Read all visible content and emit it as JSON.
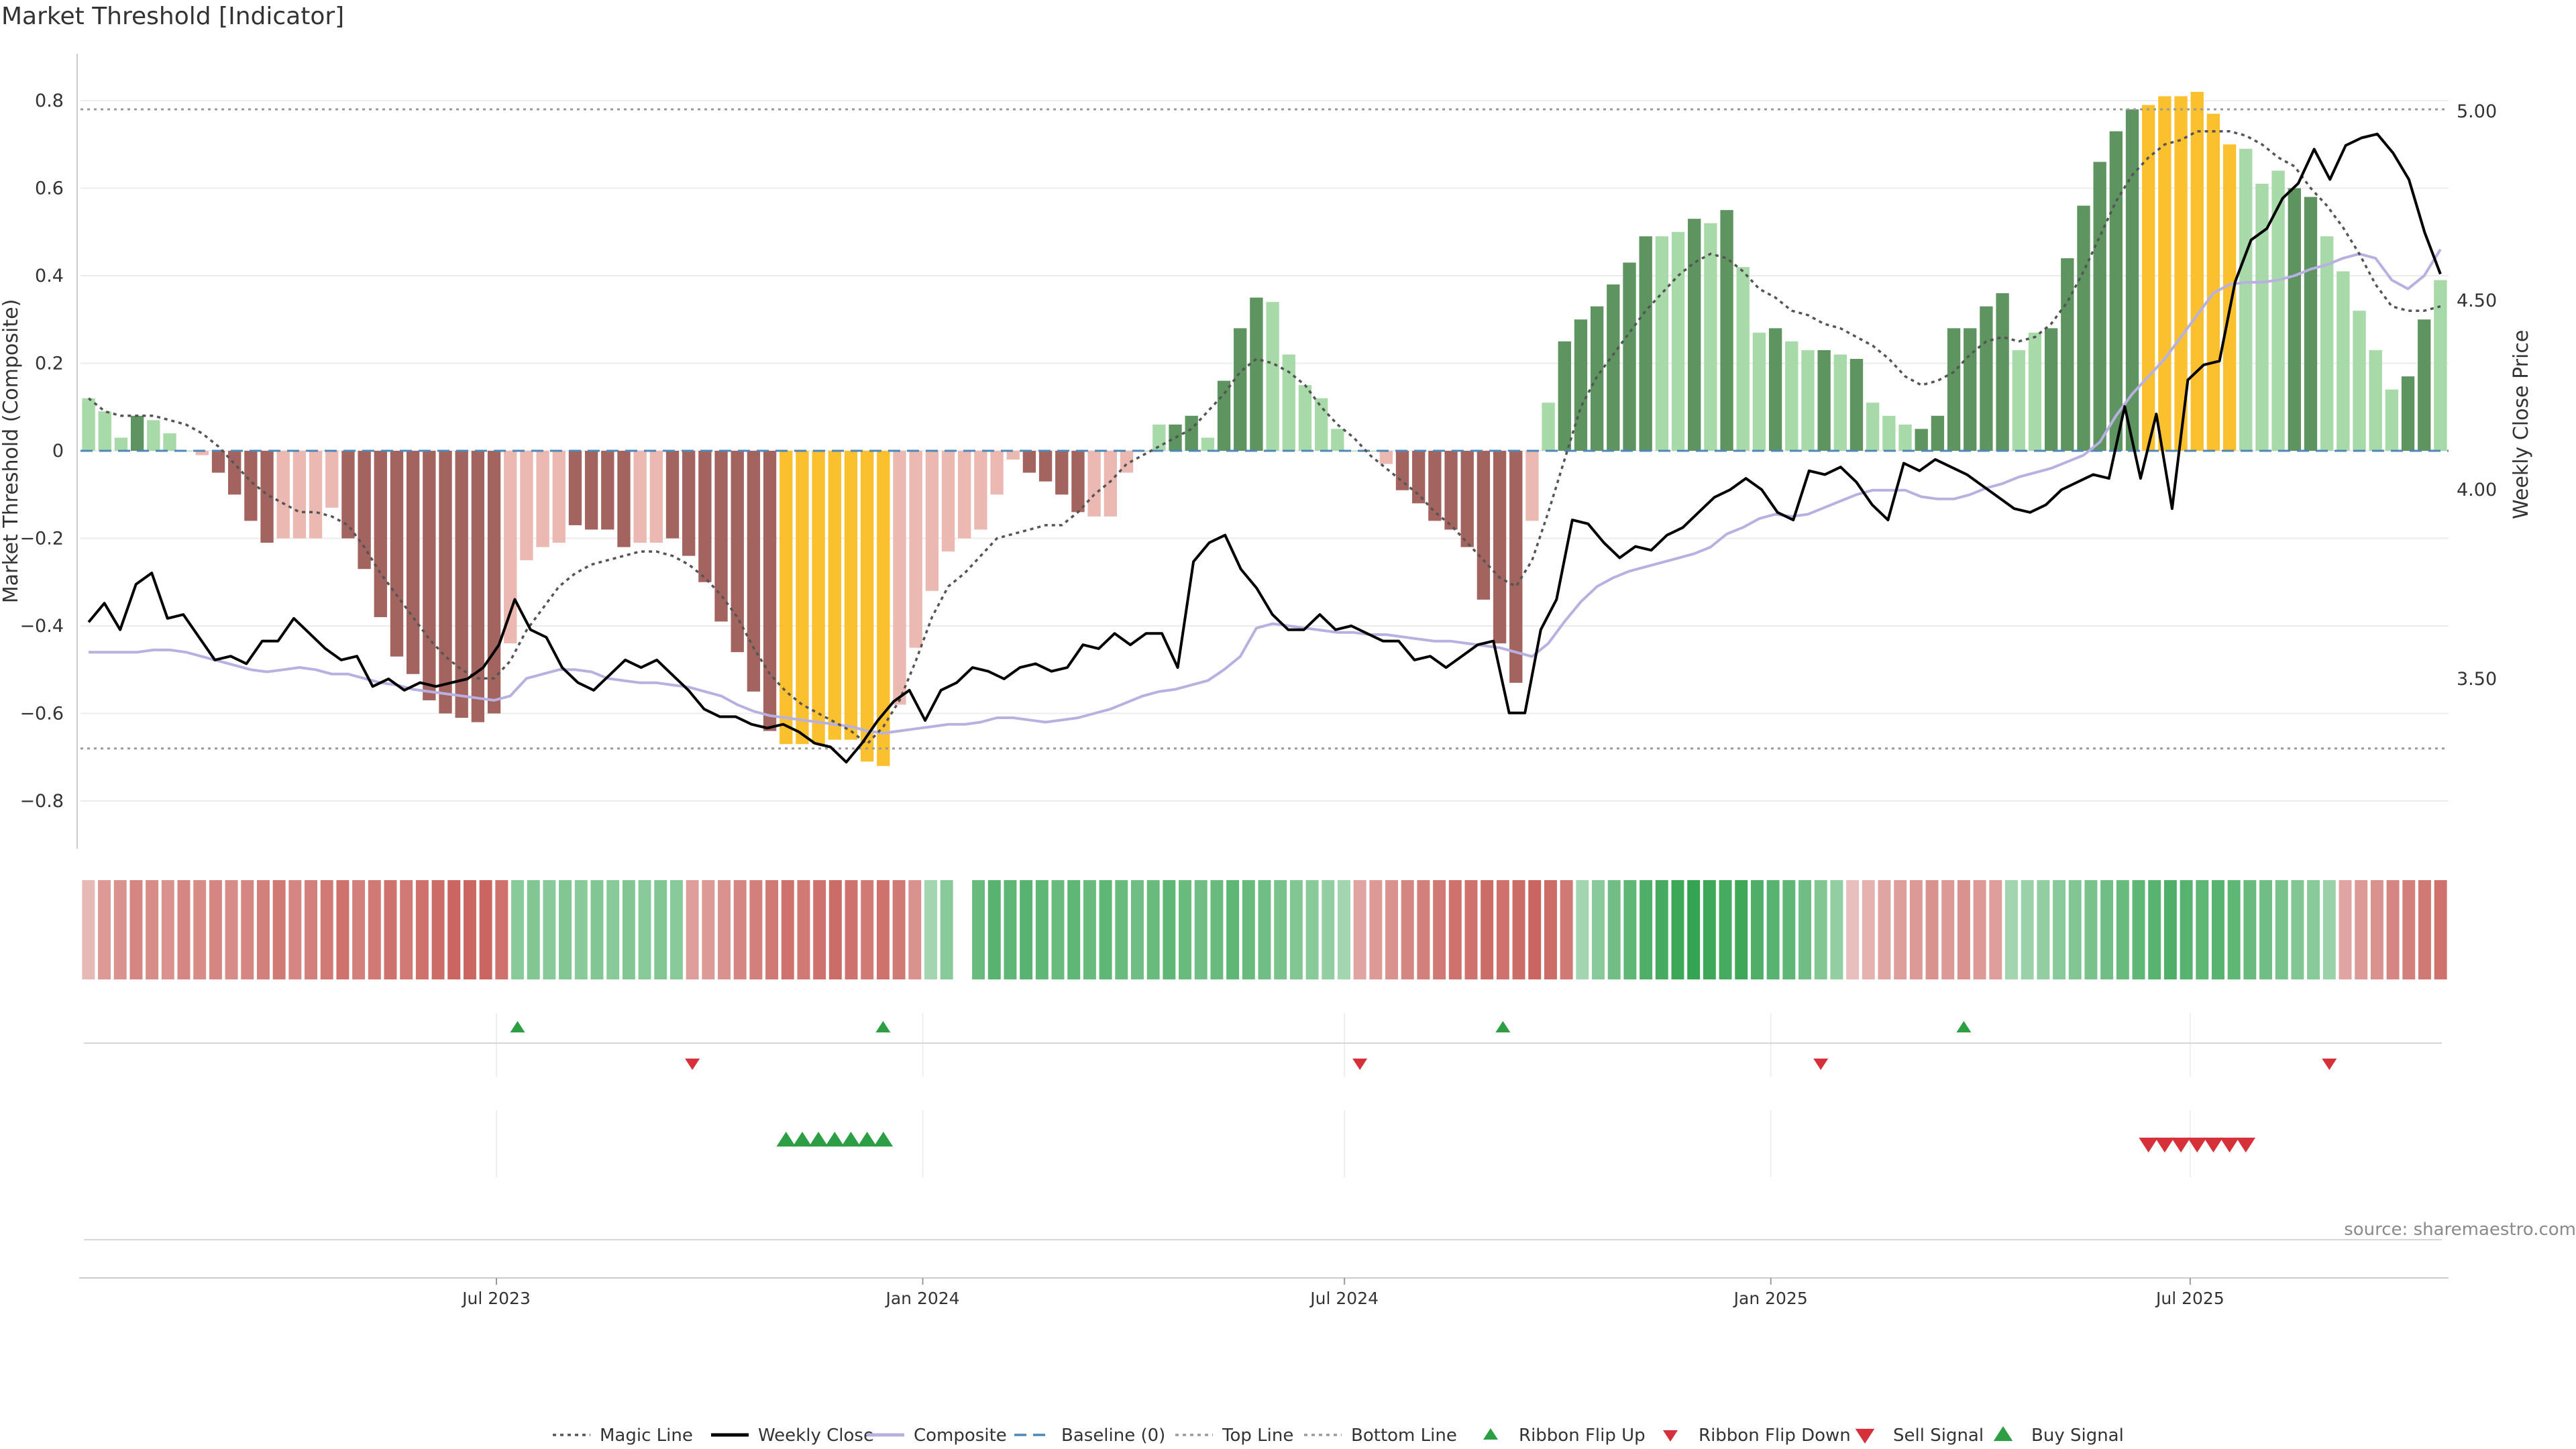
{
  "title": "Market Threshold [Indicator]",
  "source": "source: sharemaestro.com",
  "colors": {
    "bull_dark": "#5e9460",
    "bull_light": "#a8d9a8",
    "bear_dark": "#a3645f",
    "bear_light": "#ebb9b2",
    "extreme": "#fbc02d",
    "magic_line": "#555555",
    "weekly_close": "#000000",
    "composite": "#b8b0e0",
    "baseline": "#4f86b8",
    "threshold_lines": "#9a9a9a",
    "buy": "#2e9e44",
    "sell": "#d6303a"
  },
  "chart_data": {
    "type": "bar",
    "x_start": "2023-01-06",
    "x_step_days": 7,
    "left_axis": {
      "label": "Market Threshold (Composite)",
      "ticks": [
        0.8,
        0.6,
        0.4,
        0.2,
        0,
        -0.2,
        -0.4,
        -0.6,
        -0.8
      ],
      "tick_labels": [
        "0.8",
        "0.6",
        "0.4",
        "0.2",
        "0",
        "−0.2",
        "−0.4",
        "−0.6",
        "−0.8"
      ],
      "ylim": [
        -0.9,
        0.9
      ]
    },
    "right_axis": {
      "label": "Weekly Close Price",
      "ticks": [
        5.0,
        4.5,
        4.0,
        3.5
      ],
      "tick_labels": [
        "5.00",
        "4.50",
        "4.00",
        "3.50"
      ],
      "ylim": [
        3.1,
        5.2
      ]
    },
    "x_ticks": [
      {
        "date": "2023-07-01",
        "label": "Jul 2023"
      },
      {
        "date": "2024-01-01",
        "label": "Jan 2024"
      },
      {
        "date": "2024-07-01",
        "label": "Jul 2024"
      },
      {
        "date": "2025-01-01",
        "label": "Jan 2025"
      },
      {
        "date": "2025-07-01",
        "label": "Jul 2025"
      }
    ],
    "top_line": 0.78,
    "bottom_line": -0.68,
    "baseline": 0,
    "composite_bars": [
      0.12,
      0.09,
      0.03,
      0.08,
      0.07,
      0.04,
      0.0,
      -0.01,
      -0.05,
      -0.1,
      -0.16,
      -0.21,
      -0.2,
      -0.2,
      -0.2,
      -0.13,
      -0.2,
      -0.27,
      -0.38,
      -0.47,
      -0.51,
      -0.57,
      -0.6,
      -0.61,
      -0.62,
      -0.6,
      -0.44,
      -0.25,
      -0.22,
      -0.21,
      -0.17,
      -0.18,
      -0.18,
      -0.22,
      -0.21,
      -0.21,
      -0.2,
      -0.24,
      -0.3,
      -0.39,
      -0.46,
      -0.55,
      -0.64,
      -0.67,
      -0.67,
      -0.67,
      -0.66,
      -0.66,
      -0.71,
      -0.72,
      -0.58,
      -0.45,
      -0.32,
      -0.23,
      -0.2,
      -0.18,
      -0.1,
      -0.02,
      -0.05,
      -0.07,
      -0.1,
      -0.14,
      -0.15,
      -0.15,
      -0.05,
      0.0,
      0.06,
      0.06,
      0.08,
      0.03,
      0.16,
      0.28,
      0.35,
      0.34,
      0.22,
      0.15,
      0.12,
      0.05,
      0.0,
      0.0,
      -0.03,
      -0.09,
      -0.12,
      -0.16,
      -0.18,
      -0.22,
      -0.34,
      -0.44,
      -0.53,
      -0.16,
      0.11,
      0.25,
      0.3,
      0.33,
      0.38,
      0.43,
      0.49,
      0.49,
      0.5,
      0.53,
      0.52,
      0.55,
      0.42,
      0.27,
      0.28,
      0.25,
      0.23,
      0.23,
      0.22,
      0.21,
      0.11,
      0.08,
      0.06,
      0.05,
      0.08,
      0.28,
      0.28,
      0.33,
      0.36,
      0.23,
      0.27,
      0.28,
      0.44,
      0.56,
      0.66,
      0.73,
      0.78,
      0.79,
      0.81,
      0.81,
      0.82,
      0.77,
      0.7,
      0.69,
      0.61,
      0.64,
      0.6,
      0.58,
      0.49,
      0.41,
      0.32,
      0.23,
      0.14,
      0.17,
      0.3,
      0.39
    ],
    "composite_bar_shade": [
      "L",
      "L",
      "L",
      "D",
      "L",
      "L",
      "L",
      "L",
      "D",
      "D",
      "D",
      "D",
      "L",
      "L",
      "L",
      "L",
      "D",
      "D",
      "D",
      "D",
      "D",
      "D",
      "D",
      "D",
      "D",
      "D",
      "L",
      "L",
      "L",
      "L",
      "D",
      "D",
      "D",
      "D",
      "L",
      "L",
      "D",
      "D",
      "D",
      "D",
      "D",
      "D",
      "D",
      "X",
      "X",
      "X",
      "X",
      "X",
      "X",
      "X",
      "L",
      "L",
      "L",
      "L",
      "L",
      "L",
      "L",
      "L",
      "D",
      "D",
      "D",
      "D",
      "L",
      "L",
      "L",
      "L",
      "L",
      "D",
      "D",
      "L",
      "D",
      "D",
      "D",
      "L",
      "L",
      "L",
      "L",
      "L",
      "L",
      "L",
      "L",
      "D",
      "D",
      "D",
      "D",
      "D",
      "D",
      "D",
      "D",
      "L",
      "L",
      "D",
      "D",
      "D",
      "D",
      "D",
      "D",
      "L",
      "L",
      "D",
      "L",
      "D",
      "L",
      "L",
      "D",
      "L",
      "L",
      "D",
      "L",
      "D",
      "L",
      "L",
      "L",
      "D",
      "D",
      "D",
      "D",
      "D",
      "D",
      "L",
      "L",
      "D",
      "D",
      "D",
      "D",
      "D",
      "D",
      "X",
      "X",
      "X",
      "X",
      "X",
      "X",
      "L",
      "L",
      "L",
      "D",
      "D",
      "L",
      "L",
      "L",
      "L",
      "L",
      "D",
      "D",
      "L"
    ],
    "magic_line": [
      0.12,
      0.09,
      0.08,
      0.08,
      0.08,
      0.07,
      0.06,
      0.04,
      0.01,
      -0.03,
      -0.07,
      -0.1,
      -0.12,
      -0.14,
      -0.14,
      -0.15,
      -0.17,
      -0.22,
      -0.28,
      -0.33,
      -0.38,
      -0.43,
      -0.47,
      -0.5,
      -0.52,
      -0.52,
      -0.48,
      -0.41,
      -0.36,
      -0.31,
      -0.28,
      -0.26,
      -0.25,
      -0.24,
      -0.23,
      -0.23,
      -0.24,
      -0.26,
      -0.29,
      -0.33,
      -0.38,
      -0.45,
      -0.51,
      -0.55,
      -0.58,
      -0.6,
      -0.62,
      -0.64,
      -0.67,
      -0.63,
      -0.57,
      -0.48,
      -0.38,
      -0.31,
      -0.28,
      -0.24,
      -0.2,
      -0.19,
      -0.18,
      -0.17,
      -0.17,
      -0.14,
      -0.1,
      -0.07,
      -0.03,
      -0.01,
      0.01,
      0.03,
      0.05,
      0.09,
      0.13,
      0.18,
      0.21,
      0.2,
      0.18,
      0.15,
      0.1,
      0.06,
      0.03,
      -0.01,
      -0.04,
      -0.07,
      -0.1,
      -0.14,
      -0.17,
      -0.21,
      -0.25,
      -0.29,
      -0.31,
      -0.25,
      -0.14,
      -0.02,
      0.1,
      0.17,
      0.22,
      0.27,
      0.32,
      0.36,
      0.4,
      0.43,
      0.45,
      0.44,
      0.41,
      0.37,
      0.35,
      0.32,
      0.31,
      0.29,
      0.28,
      0.26,
      0.24,
      0.21,
      0.17,
      0.15,
      0.16,
      0.18,
      0.22,
      0.25,
      0.26,
      0.25,
      0.26,
      0.29,
      0.34,
      0.41,
      0.49,
      0.57,
      0.63,
      0.67,
      0.7,
      0.71,
      0.73,
      0.73,
      0.73,
      0.72,
      0.7,
      0.67,
      0.65,
      0.6,
      0.56,
      0.51,
      0.45,
      0.38,
      0.33,
      0.32,
      0.32,
      0.33
    ],
    "weekly_close": [
      3.65,
      3.7,
      3.63,
      3.75,
      3.78,
      3.66,
      3.67,
      3.61,
      3.55,
      3.56,
      3.54,
      3.6,
      3.6,
      3.66,
      3.62,
      3.58,
      3.55,
      3.56,
      3.48,
      3.5,
      3.47,
      3.49,
      3.48,
      3.49,
      3.5,
      3.53,
      3.59,
      3.71,
      3.63,
      3.61,
      3.53,
      3.49,
      3.47,
      3.51,
      3.55,
      3.53,
      3.55,
      3.51,
      3.47,
      3.42,
      3.4,
      3.4,
      3.38,
      3.37,
      3.38,
      3.36,
      3.33,
      3.32,
      3.28,
      3.33,
      3.39,
      3.44,
      3.47,
      3.39,
      3.47,
      3.49,
      3.53,
      3.52,
      3.5,
      3.53,
      3.54,
      3.52,
      3.53,
      3.59,
      3.58,
      3.62,
      3.59,
      3.62,
      3.62,
      3.53,
      3.81,
      3.86,
      3.88,
      3.79,
      3.74,
      3.67,
      3.63,
      3.63,
      3.67,
      3.63,
      3.64,
      3.62,
      3.6,
      3.6,
      3.55,
      3.56,
      3.53,
      3.56,
      3.59,
      3.6,
      3.41,
      3.41,
      3.63,
      3.71,
      3.92,
      3.91,
      3.86,
      3.82,
      3.85,
      3.84,
      3.88,
      3.9,
      3.94,
      3.98,
      4.0,
      4.03,
      4.0,
      3.94,
      3.92,
      4.05,
      4.04,
      4.06,
      4.02,
      3.96,
      3.92,
      4.07,
      4.05,
      4.08,
      4.06,
      4.04,
      4.01,
      3.98,
      3.95,
      3.94,
      3.96,
      4.0,
      4.02,
      4.04,
      4.03,
      4.22,
      4.03,
      4.2,
      3.95,
      4.29,
      4.33,
      4.34,
      4.55,
      4.66,
      4.69,
      4.77,
      4.81,
      4.9,
      4.82,
      4.91,
      4.93,
      4.94,
      4.89,
      4.82,
      4.68,
      4.57
    ],
    "composite_line": [
      -0.46,
      -0.46,
      -0.46,
      -0.46,
      -0.455,
      -0.455,
      -0.46,
      -0.47,
      -0.48,
      -0.49,
      -0.5,
      -0.505,
      -0.5,
      -0.495,
      -0.5,
      -0.51,
      -0.51,
      -0.52,
      -0.53,
      -0.535,
      -0.545,
      -0.55,
      -0.555,
      -0.56,
      -0.565,
      -0.57,
      -0.56,
      -0.52,
      -0.51,
      -0.5,
      -0.5,
      -0.505,
      -0.52,
      -0.525,
      -0.53,
      -0.53,
      -0.535,
      -0.54,
      -0.55,
      -0.56,
      -0.58,
      -0.595,
      -0.605,
      -0.61,
      -0.615,
      -0.62,
      -0.625,
      -0.63,
      -0.64,
      -0.645,
      -0.64,
      -0.635,
      -0.63,
      -0.625,
      -0.625,
      -0.62,
      -0.61,
      -0.61,
      -0.615,
      -0.62,
      -0.615,
      -0.61,
      -0.6,
      -0.59,
      -0.575,
      -0.56,
      -0.55,
      -0.545,
      -0.535,
      -0.525,
      -0.5,
      -0.47,
      -0.405,
      -0.395,
      -0.4,
      -0.405,
      -0.41,
      -0.415,
      -0.415,
      -0.42,
      -0.42,
      -0.425,
      -0.43,
      -0.435,
      -0.435,
      -0.44,
      -0.445,
      -0.45,
      -0.46,
      -0.47,
      -0.44,
      -0.39,
      -0.345,
      -0.31,
      -0.29,
      -0.275,
      -0.265,
      -0.255,
      -0.245,
      -0.235,
      -0.22,
      -0.19,
      -0.175,
      -0.155,
      -0.145,
      -0.15,
      -0.145,
      -0.13,
      -0.115,
      -0.1,
      -0.09,
      -0.09,
      -0.09,
      -0.105,
      -0.11,
      -0.11,
      -0.1,
      -0.085,
      -0.075,
      -0.06,
      -0.05,
      -0.04,
      -0.025,
      -0.01,
      0.02,
      0.08,
      0.13,
      0.17,
      0.21,
      0.26,
      0.31,
      0.36,
      0.38,
      0.385,
      0.385,
      0.39,
      0.4,
      0.415,
      0.425,
      0.44,
      0.45,
      0.44,
      0.39,
      0.37,
      0.4,
      0.46
    ],
    "ribbon_level": [
      -0.3,
      -0.55,
      -0.6,
      -0.7,
      -0.65,
      -0.6,
      -0.7,
      -0.65,
      -0.7,
      -0.65,
      -0.7,
      -0.75,
      -0.8,
      -0.7,
      -0.75,
      -0.8,
      -0.85,
      -0.75,
      -0.8,
      -0.85,
      -0.8,
      -0.85,
      -0.9,
      -0.95,
      -0.95,
      -0.95,
      -0.85,
      0.45,
      0.5,
      0.45,
      0.5,
      0.45,
      0.5,
      0.45,
      0.5,
      0.45,
      0.5,
      0.45,
      -0.5,
      -0.55,
      -0.6,
      -0.7,
      -0.75,
      -0.8,
      -0.85,
      -0.8,
      -0.85,
      -0.9,
      -0.85,
      -0.8,
      -0.85,
      -0.8,
      -0.6,
      0.3,
      0.45,
      0.55,
      0.65,
      0.75,
      0.7,
      0.75,
      0.7,
      0.65,
      0.7,
      0.65,
      0.7,
      0.65,
      0.6,
      0.65,
      0.7,
      0.65,
      0.6,
      0.65,
      0.7,
      0.65,
      0.6,
      0.55,
      0.5,
      0.45,
      0.4,
      0.3,
      -0.45,
      -0.55,
      -0.6,
      -0.7,
      -0.75,
      -0.8,
      -0.85,
      -0.85,
      -0.9,
      -0.85,
      -0.9,
      -0.95,
      -0.9,
      -0.8,
      0.3,
      0.45,
      0.6,
      0.7,
      0.8,
      0.85,
      0.9,
      0.95,
      0.9,
      0.85,
      0.9,
      0.8,
      0.75,
      0.7,
      0.6,
      0.5,
      0.4,
      -0.25,
      -0.35,
      -0.45,
      -0.5,
      -0.55,
      -0.6,
      -0.55,
      -0.6,
      -0.55,
      -0.5,
      0.3,
      0.35,
      0.4,
      0.45,
      0.5,
      0.55,
      0.6,
      0.65,
      0.7,
      0.75,
      0.8,
      0.75,
      0.7,
      0.75,
      0.7,
      0.65,
      0.6,
      0.55,
      0.5,
      0.45,
      0.35,
      -0.45,
      -0.55,
      -0.6,
      -0.7,
      -0.75,
      -0.8,
      -0.85
    ],
    "ribbon_gap_index": 55,
    "ribbon_flip_up": [
      27,
      50,
      89,
      118
    ],
    "ribbon_flip_down": [
      38,
      80,
      109,
      141
    ],
    "buy_signals": [
      43,
      44,
      45,
      46,
      47,
      48,
      49
    ],
    "sell_signals": [
      127,
      128,
      129,
      130,
      131,
      132,
      133
    ],
    "legend": [
      {
        "label": "Magic Line",
        "kind": "dotted",
        "color": "#555555"
      },
      {
        "label": "Weekly Close",
        "kind": "solid",
        "color": "#000000"
      },
      {
        "label": "Composite",
        "kind": "solid",
        "color": "#b8b0e0"
      },
      {
        "label": "Baseline (0)",
        "kind": "dashed",
        "color": "#4f86b8"
      },
      {
        "label": "Top Line",
        "kind": "dotted",
        "color": "#9a9a9a"
      },
      {
        "label": "Bottom Line",
        "kind": "dotted",
        "color": "#9a9a9a"
      },
      {
        "label": "Ribbon Flip Up",
        "kind": "tri-up-small",
        "color": "#2e9e44"
      },
      {
        "label": "Ribbon Flip Down",
        "kind": "tri-down-small",
        "color": "#d6303a"
      },
      {
        "label": "Sell Signal",
        "kind": "tri-down",
        "color": "#d6303a"
      },
      {
        "label": "Buy Signal",
        "kind": "tri-up",
        "color": "#2e9e44"
      }
    ]
  }
}
